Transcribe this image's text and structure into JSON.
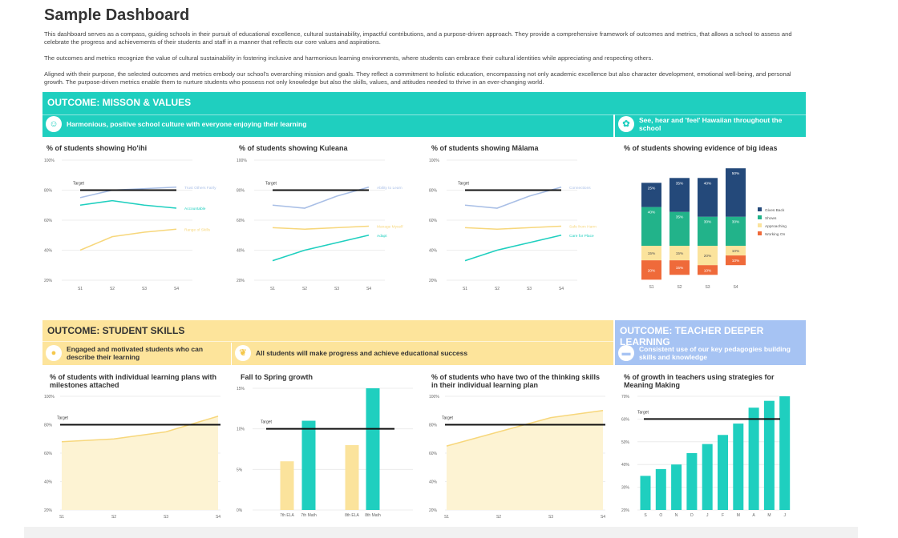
{
  "title": "Sample Dashboard",
  "intro": [
    "This dashboard serves as a compass, guiding schools in their pursuit of educational excellence, cultural sustainability, impactful contributions, and a purpose-driven approach. They provide a comprehensive framework of outcomes and metrics, that allows a school to assess and celebrate the progress and achievements of their students and staff in a manner that reflects our core values and aspirations.",
    "The outcomes and metrics recognize the value of cultural sustainability in fostering inclusive and harmonious learning environments, where students can embrace their cultural identities while appreciating and respecting others.",
    "Aligned with their purpose, the selected outcomes and metrics embody our school's overarching mission and goals. They reflect a commitment to holistic education, encompassing not only academic excellence but also character development, emotional well-being, and personal growth. The purpose-driven metrics enable them to nurture students who possess not only knowledge but also the skills, values, and attitudes needed to thrive in an ever-changing world."
  ],
  "colors": {
    "teal": "#1fcfbf",
    "yellow": "#fde49b",
    "blue": "#a6c3f3",
    "navy": "#24497a",
    "green": "#22b38a",
    "lightyellow": "#fbe39c",
    "orange": "#ef6a3a",
    "lineblue": "#a9bfe6",
    "lineyellow": "#f7d77c"
  },
  "band1": {
    "title": "OUTCOME: MISSON & VALUES",
    "sub1": "Harmonious, positive school culture with everyone enjoying their learning",
    "sub2": "See, hear and 'feel' Hawaiian throughout the school"
  },
  "band2": {
    "title": "OUTCOME: STUDENT SKILLS",
    "sub1": "Engaged and motivated students who can describe their learning",
    "sub2": "All students will make progress and achieve educational success"
  },
  "band3": {
    "title": "OUTCOME: TEACHER DEEPER LEARNING",
    "sub1": "Consistent use of our key pedagogies building skills and knowledge"
  },
  "chart_data": [
    {
      "id": "hoihi",
      "type": "line",
      "title": "% of students showing Ho'ihi",
      "x": [
        "S1",
        "S2",
        "S3",
        "S4"
      ],
      "ylim": [
        20,
        100
      ],
      "yticks": [
        "20%",
        "40%",
        "60%",
        "80%",
        "100%"
      ],
      "target": 80,
      "target_label": "Target",
      "series": [
        {
          "name": "Trust Others Fairly",
          "color": "#a9bfe6",
          "values": [
            75,
            80,
            81,
            82
          ]
        },
        {
          "name": "Accountable",
          "color": "#1fcfbf",
          "values": [
            70,
            73,
            70,
            68
          ]
        },
        {
          "name": "Range of Skills",
          "color": "#f7d77c",
          "values": [
            40,
            49,
            52,
            54
          ]
        }
      ]
    },
    {
      "id": "kuleana",
      "type": "line",
      "title": "% of students showing Kuleana",
      "x": [
        "S1",
        "S2",
        "S3",
        "S4"
      ],
      "ylim": [
        20,
        100
      ],
      "yticks": [
        "20%",
        "40%",
        "60%",
        "80%",
        "100%"
      ],
      "target": 80,
      "target_label": "Target",
      "series": [
        {
          "name": "Ability to Learn",
          "color": "#a9bfe6",
          "values": [
            70,
            68,
            76,
            82
          ]
        },
        {
          "name": "Manage Myself",
          "color": "#f7d77c",
          "values": [
            55,
            54,
            55,
            56
          ]
        },
        {
          "name": "Adapt",
          "color": "#1fcfbf",
          "values": [
            33,
            40,
            45,
            50
          ]
        }
      ]
    },
    {
      "id": "malama",
      "type": "line",
      "title": "% of students showing Mālama",
      "x": [
        "S1",
        "S2",
        "S3",
        "S4"
      ],
      "ylim": [
        20,
        100
      ],
      "yticks": [
        "20%",
        "40%",
        "60%",
        "80%",
        "100%"
      ],
      "target": 80,
      "target_label": "Target",
      "series": [
        {
          "name": "Connections",
          "color": "#a9bfe6",
          "values": [
            70,
            68,
            76,
            82
          ]
        },
        {
          "name": "Safe from Harm",
          "color": "#f7d77c",
          "values": [
            55,
            54,
            55,
            56
          ]
        },
        {
          "name": "Care for Place",
          "color": "#1fcfbf",
          "values": [
            33,
            40,
            45,
            50
          ]
        }
      ]
    },
    {
      "id": "bigideas",
      "type": "bar",
      "stacked": true,
      "title": "% of students showing evidence of big ideas",
      "x": [
        "S1",
        "S2",
        "S3",
        "S4"
      ],
      "legend": "right",
      "series": [
        {
          "name": "Gives Back",
          "color": "#24497a",
          "values": [
            25,
            35,
            40,
            50
          ]
        },
        {
          "name": "Shows",
          "color": "#22b38a",
          "values": [
            40,
            35,
            30,
            30
          ]
        },
        {
          "name": "Approaching",
          "color": "#fbe39c",
          "values": [
            15,
            15,
            20,
            10
          ]
        },
        {
          "name": "Working On",
          "color": "#ef6a3a",
          "values": [
            20,
            15,
            10,
            10
          ]
        }
      ]
    },
    {
      "id": "ilp",
      "type": "area",
      "title": "% of students with individual learning plans with milestones attached",
      "x": [
        "S1",
        "S2",
        "S3",
        "S4"
      ],
      "ylim": [
        20,
        100
      ],
      "yticks": [
        "20%",
        "40%",
        "60%",
        "80%",
        "100%"
      ],
      "target": 80,
      "target_label": "Target",
      "series": [
        {
          "name": "ILP",
          "color": "#f7d77c",
          "values": [
            68,
            70,
            75,
            86
          ]
        }
      ]
    },
    {
      "id": "growth",
      "type": "bar",
      "title": "Fall to Spring growth",
      "x": [
        "7th ELA",
        "7th Math",
        "8th ELA",
        "8th Math"
      ],
      "ylim": [
        0,
        15
      ],
      "yticks": [
        "0%",
        "5%",
        "10%",
        "15%"
      ],
      "target": 10,
      "target_label": "Target",
      "values": [
        6,
        11,
        8,
        15
      ],
      "bar_colors": [
        "#fbe39c",
        "#1fcfbf",
        "#fbe39c",
        "#1fcfbf"
      ]
    },
    {
      "id": "thinking",
      "type": "area",
      "title": "% of students who have two of the thinking skills in their individual learning plan",
      "x": [
        "S1",
        "S2",
        "S3",
        "S4"
      ],
      "ylim": [
        20,
        100
      ],
      "yticks": [
        "20%",
        "40%",
        "60%",
        "80%",
        "100%"
      ],
      "target": 80,
      "target_label": "Target",
      "series": [
        {
          "name": "Thinking skills",
          "color": "#f7d77c",
          "values": [
            65,
            75,
            85,
            90
          ]
        }
      ]
    },
    {
      "id": "teachers",
      "type": "bar",
      "title": "% of growth in teachers using strategies for Meaning Making",
      "x": [
        "S",
        "O",
        "N",
        "D",
        "J",
        "F",
        "M",
        "A",
        "M",
        "J"
      ],
      "ylim": [
        20,
        70
      ],
      "yticks": [
        "20%",
        "30%",
        "40%",
        "50%",
        "60%",
        "70%"
      ],
      "target": 60,
      "target_label": "Target",
      "values": [
        35,
        38,
        40,
        45,
        49,
        53,
        58,
        65,
        68,
        70
      ],
      "bar_colors": [
        "#1fcfbf"
      ]
    }
  ]
}
